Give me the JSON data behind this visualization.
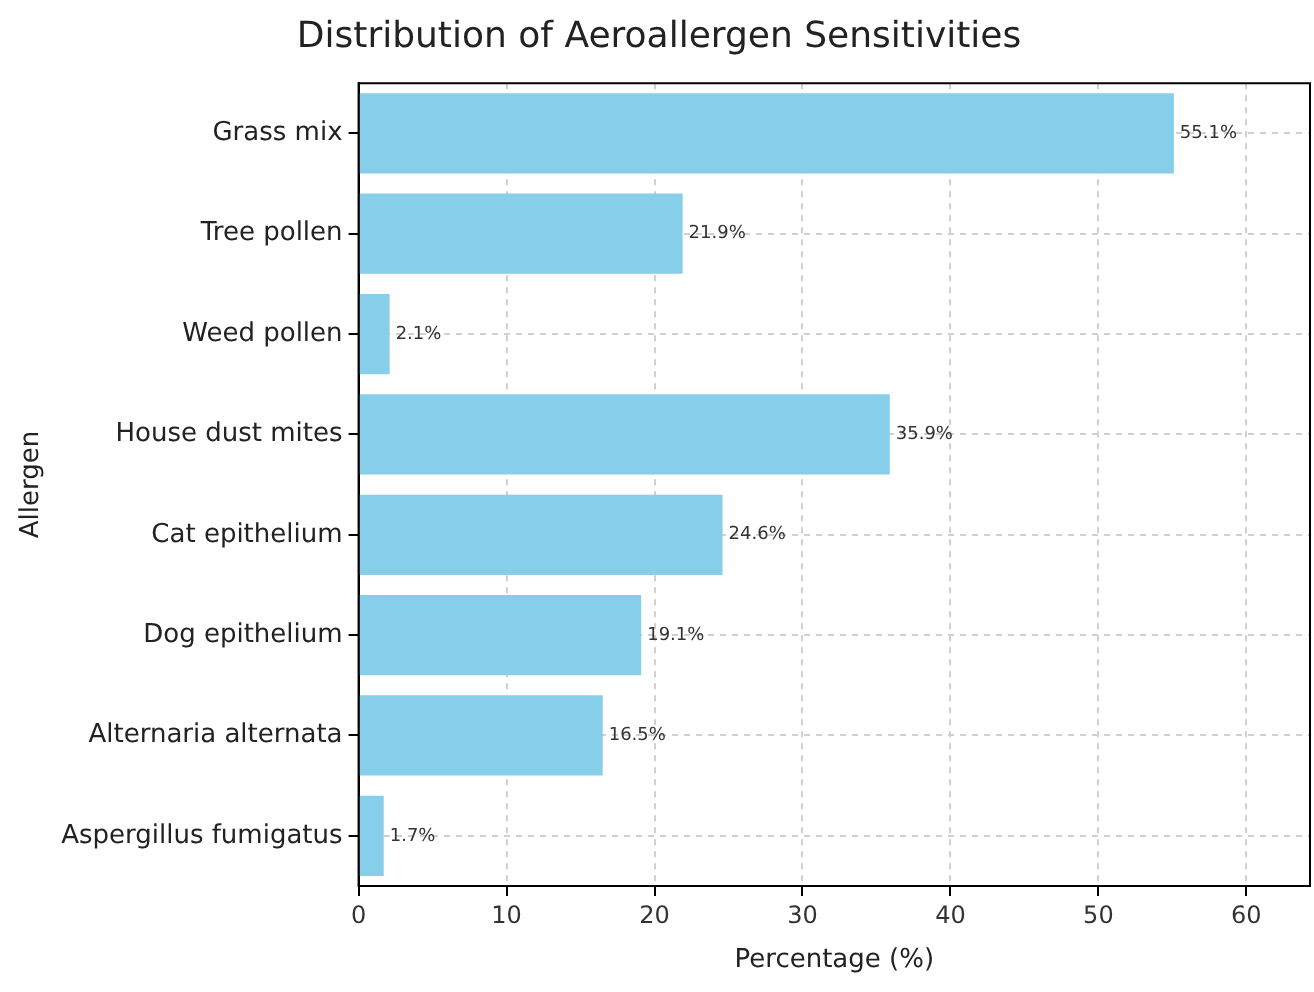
{
  "chart_data": {
    "type": "bar",
    "orientation": "horizontal",
    "title": "Distribution of Aeroallergen Sensitivities",
    "xlabel": "Percentage (%)",
    "ylabel": "Allergen",
    "categories": [
      "Grass mix",
      "Tree pollen",
      "Weed pollen",
      "House dust mites",
      "Cat epithelium",
      "Dog epithelium",
      "Alternaria alternata",
      "Aspergillus fumigatus"
    ],
    "values": [
      55.1,
      21.9,
      2.1,
      35.9,
      24.6,
      19.1,
      16.5,
      1.7
    ],
    "value_labels": [
      "55.1%",
      "21.9%",
      "2.1%",
      "35.9%",
      "24.6%",
      "19.1%",
      "16.5%",
      "1.7%"
    ],
    "color": "#87ceeb",
    "xlim": [
      0,
      64.3
    ],
    "xticks": [
      0,
      10,
      20,
      30,
      40,
      50,
      60
    ],
    "grid": true
  }
}
